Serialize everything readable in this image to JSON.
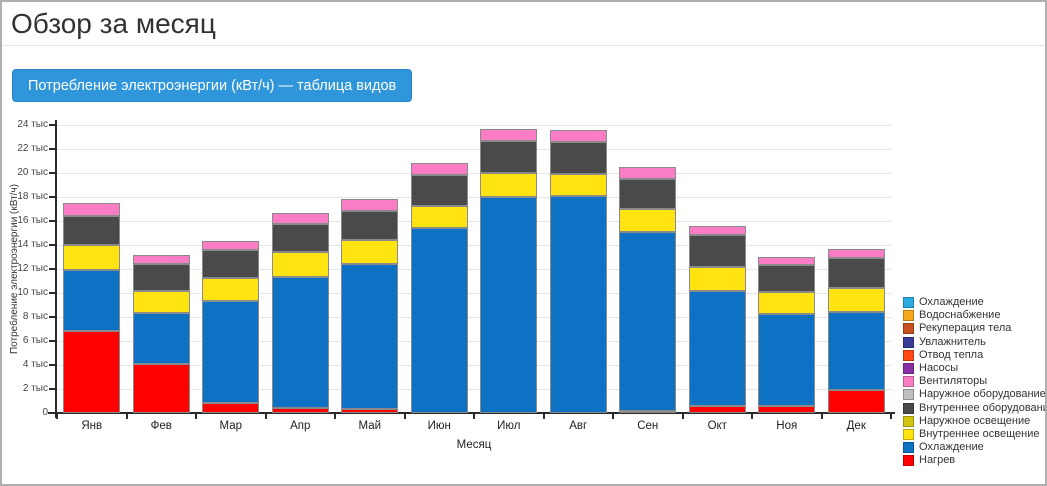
{
  "page": {
    "title": "Обзор за месяц",
    "button_label": "Потребление электроэнергии (кВт/ч) — таблица видов",
    "accent_color": "#2F96DB"
  },
  "chart_data": {
    "type": "bar",
    "stacked": true,
    "title": "",
    "xlabel": "Месяц",
    "ylabel": "Потребление электроэнергии (кВт/ч)",
    "ylim": [
      0,
      24000
    ],
    "grid": true,
    "legend_position": "right",
    "yticks": [
      {
        "value": 0,
        "label": "0"
      },
      {
        "value": 2000,
        "label": "2 тыс"
      },
      {
        "value": 4000,
        "label": "4 тыс"
      },
      {
        "value": 6000,
        "label": "6 тыс"
      },
      {
        "value": 8000,
        "label": "8 тыс"
      },
      {
        "value": 10000,
        "label": "10 тыс"
      },
      {
        "value": 12000,
        "label": "12 тыс"
      },
      {
        "value": 14000,
        "label": "14 тыс"
      },
      {
        "value": 16000,
        "label": "16 тыс"
      },
      {
        "value": 18000,
        "label": "18 тыс"
      },
      {
        "value": 20000,
        "label": "20 тыс"
      },
      {
        "value": 22000,
        "label": "22 тыс"
      },
      {
        "value": 24000,
        "label": "24 тыс"
      }
    ],
    "categories": [
      "Янв",
      "Фев",
      "Мар",
      "Апр",
      "Май",
      "Июн",
      "Июл",
      "Авг",
      "Сен",
      "Окт",
      "Ноя",
      "Дек"
    ],
    "series": [
      {
        "name": "Нагрев",
        "color": "#FF0000",
        "values": [
          6800,
          4100,
          800,
          400,
          300,
          0,
          0,
          0,
          100,
          600,
          600,
          1900
        ]
      },
      {
        "name": "Охлаждение",
        "color": "#0E72C4",
        "values": [
          5150,
          4250,
          8500,
          10900,
          12100,
          15400,
          18000,
          18100,
          14900,
          9600,
          7650,
          6500
        ]
      },
      {
        "name": "Внутреннее освещение",
        "color": "#FFE412",
        "values": [
          2050,
          1850,
          1950,
          2100,
          2000,
          1850,
          2000,
          1850,
          1900,
          1950,
          1850,
          2000
        ]
      },
      {
        "name": "Внутреннее оборудование",
        "color": "#4A4A4A",
        "values": [
          2450,
          2200,
          2300,
          2350,
          2400,
          2550,
          2700,
          2650,
          2500,
          2650,
          2250,
          2500
        ]
      },
      {
        "name": "Вентиляторы",
        "color": "#F97CC5",
        "values": [
          1050,
          800,
          750,
          900,
          1000,
          1000,
          1000,
          1000,
          1000,
          800,
          650,
          800
        ]
      }
    ],
    "legend": [
      {
        "label": "Охлаждение",
        "color": "#29ABE2"
      },
      {
        "label": "Водоснабжение",
        "color": "#F5A81C"
      },
      {
        "label": "Рекуперация тела",
        "color": "#C8501E"
      },
      {
        "label": "Увлажнитель",
        "color": "#3B3B9C"
      },
      {
        "label": "Отвод тепла",
        "color": "#FF4814"
      },
      {
        "label": "Насосы",
        "color": "#8B2FA8"
      },
      {
        "label": "Вентиляторы",
        "color": "#F97CC5"
      },
      {
        "label": "Наружное оборудование",
        "color": "#BFBFBF"
      },
      {
        "label": "Внутреннее оборудование",
        "color": "#4A4A4A"
      },
      {
        "label": "Наружное освещение",
        "color": "#D2C613"
      },
      {
        "label": "Внутреннее освещение",
        "color": "#FFE412"
      },
      {
        "label": "Охлаждение",
        "color": "#0E72C4"
      },
      {
        "label": "Нагрев",
        "color": "#FF0000"
      }
    ]
  }
}
